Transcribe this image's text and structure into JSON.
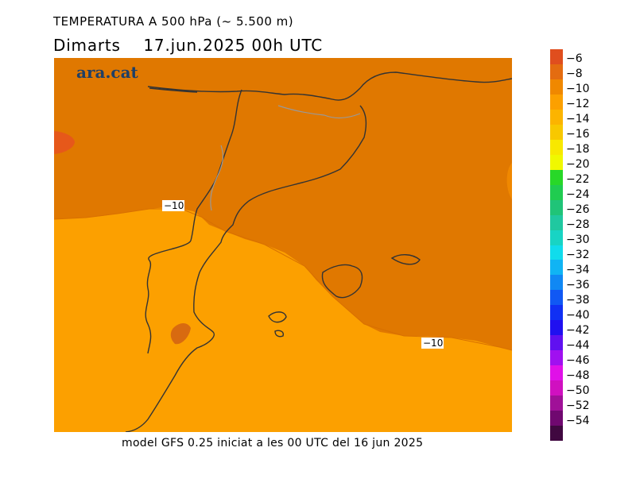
{
  "header": {
    "title": "TEMPERATURA A 500 hPa (~ 5.500 m)",
    "subtitle": "Dimarts    17.jun.2025 00h UTC"
  },
  "map": {
    "logo": "ara.cat",
    "contour_labels": [
      "−10",
      "−10"
    ],
    "colors": {
      "minus8": "#e07800",
      "minus10": "#f08c00",
      "minus12": "#fca000",
      "minus6": "#e6581a"
    }
  },
  "footer": "model GFS 0.25 iniciat a les 00 UTC del 16 jun 2025",
  "legend": {
    "labels": [
      "−6",
      "−8",
      "−10",
      "−12",
      "−14",
      "−16",
      "−18",
      "−20",
      "−22",
      "−24",
      "−26",
      "−28",
      "−30",
      "−32",
      "−34",
      "−36",
      "−38",
      "−40",
      "−42",
      "−44",
      "−46",
      "−48",
      "−50",
      "−52",
      "−54"
    ],
    "colors": [
      "#e04e1e",
      "#e46c10",
      "#f08800",
      "#fca000",
      "#fcb400",
      "#f8c800",
      "#f8e800",
      "#f0f800",
      "#28d828",
      "#20cc50",
      "#20c478",
      "#20c8a0",
      "#18d4c4",
      "#10dcec",
      "#10b4f4",
      "#1088f4",
      "#1058f4",
      "#1030f4",
      "#2010f0",
      "#6010f0",
      "#a010f0",
      "#e010e8",
      "#d010c0",
      "#a01098",
      "#700870",
      "#400840"
    ]
  }
}
